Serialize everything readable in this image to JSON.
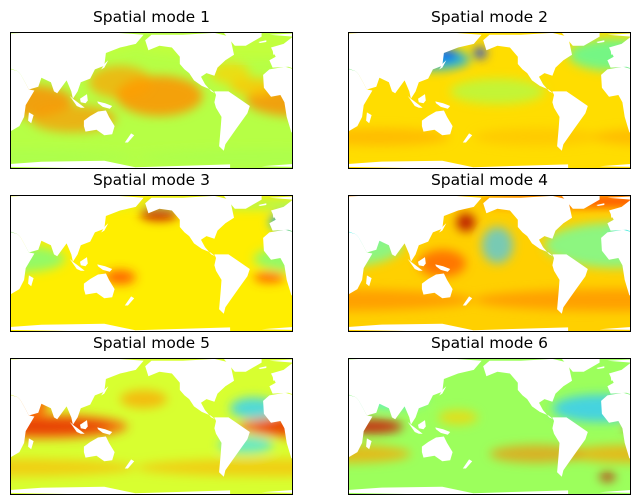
{
  "chart_data": {
    "type": "heatmap",
    "colormap": "jet",
    "panels": [
      {
        "title": "Spatial mode 1",
        "background": "#b6ff45",
        "blobs": [
          {
            "lon": -150,
            "lat": 5,
            "rx": 55,
            "ry": 22,
            "color": "#ff9000",
            "opacity": 0.85
          },
          {
            "lon": 30,
            "lat": 0,
            "rx": 70,
            "ry": 18,
            "color": "#ff8a00",
            "opacity": 0.8
          },
          {
            "lon": 100,
            "lat": -20,
            "rx": 55,
            "ry": 15,
            "color": "#ff9400",
            "opacity": 0.7
          },
          {
            "lon": -30,
            "lat": 15,
            "rx": 30,
            "ry": 10,
            "color": "#ffc400",
            "opacity": 0.8
          },
          {
            "lon": 160,
            "lat": 20,
            "rx": 40,
            "ry": 18,
            "color": "#ffa000",
            "opacity": 0.7
          },
          {
            "lon": 0,
            "lat": 60,
            "rx": 180,
            "ry": 14,
            "color": "#c8ff37",
            "opacity": 0.7
          },
          {
            "lon": 0,
            "lat": -62,
            "rx": 180,
            "ry": 8,
            "color": "#a8ff50",
            "opacity": 0.7
          },
          {
            "lon": -60,
            "lat": 30,
            "rx": 25,
            "ry": 12,
            "color": "#ffd000",
            "opacity": 0.7
          }
        ]
      },
      {
        "title": "Spatial mode 2",
        "background": "#ffdd00",
        "blobs": [
          {
            "lon": 40,
            "lat": 40,
            "rx": 35,
            "ry": 10,
            "color": "#00d4ff",
            "opacity": 0.85
          },
          {
            "lon": 0,
            "lat": 50,
            "rx": 60,
            "ry": 18,
            "color": "#46ffb0",
            "opacity": 0.75
          },
          {
            "lon": 130,
            "lat": 45,
            "rx": 45,
            "ry": 12,
            "color": "#00b0ff",
            "opacity": 0.8
          },
          {
            "lon": 145,
            "lat": 50,
            "rx": 15,
            "ry": 6,
            "color": "#0050ff",
            "opacity": 0.9
          },
          {
            "lon": -172,
            "lat": 52,
            "rx": 8,
            "ry": 6,
            "color": "#0030ff",
            "opacity": 0.9
          },
          {
            "lon": -150,
            "lat": 10,
            "rx": 60,
            "ry": 14,
            "color": "#aaff4d",
            "opacity": 0.7
          },
          {
            "lon": 60,
            "lat": -40,
            "rx": 90,
            "ry": 10,
            "color": "#ffb000",
            "opacity": 0.7
          },
          {
            "lon": -100,
            "lat": -40,
            "rx": 80,
            "ry": 10,
            "color": "#ffc000",
            "opacity": 0.6
          }
        ]
      },
      {
        "title": "Spatial mode 3",
        "background": "#ffee00",
        "blobs": [
          {
            "lon": 20,
            "lat": 45,
            "rx": 30,
            "ry": 12,
            "color": "#00c0ff",
            "opacity": 0.8
          },
          {
            "lon": 5,
            "lat": 48,
            "rx": 10,
            "ry": 5,
            "color": "#0040ff",
            "opacity": 0.9
          },
          {
            "lon": 90,
            "lat": 40,
            "rx": 30,
            "ry": 10,
            "color": "#00f0f0",
            "opacity": 0.8
          },
          {
            "lon": 30,
            "lat": 5,
            "rx": 60,
            "ry": 15,
            "color": "#66ff90",
            "opacity": 0.7
          },
          {
            "lon": -10,
            "lat": -15,
            "rx": 20,
            "ry": 6,
            "color": "#ff5000",
            "opacity": 0.85
          },
          {
            "lon": 160,
            "lat": -15,
            "rx": 20,
            "ry": 8,
            "color": "#ff3000",
            "opacity": 0.7
          },
          {
            "lon": -150,
            "lat": 55,
            "rx": 25,
            "ry": 8,
            "color": "#c00000",
            "opacity": 0.85
          },
          {
            "lon": 0,
            "lat": 65,
            "rx": 180,
            "ry": 6,
            "color": "#80ff80",
            "opacity": 0.6
          }
        ]
      },
      {
        "title": "Spatial mode 4",
        "background": "#ffd000",
        "blobs": [
          {
            "lon": 0,
            "lat": 20,
            "rx": 90,
            "ry": 25,
            "color": "#70ffa0",
            "opacity": 0.8
          },
          {
            "lon": 30,
            "lat": 35,
            "rx": 35,
            "ry": 12,
            "color": "#30e8ff",
            "opacity": 0.8
          },
          {
            "lon": -150,
            "lat": 20,
            "rx": 20,
            "ry": 20,
            "color": "#40c8ff",
            "opacity": 0.7
          },
          {
            "lon": 140,
            "lat": 0,
            "rx": 30,
            "ry": 15,
            "color": "#ff6000",
            "opacity": 0.8
          },
          {
            "lon": 0,
            "lat": 68,
            "rx": 170,
            "ry": 6,
            "color": "#ff3000",
            "opacity": 0.85
          },
          {
            "lon": 0,
            "lat": -40,
            "rx": 180,
            "ry": 12,
            "color": "#ff8c00",
            "opacity": 0.7
          },
          {
            "lon": 170,
            "lat": 45,
            "rx": 12,
            "ry": 10,
            "color": "#b00000",
            "opacity": 0.85
          }
        ]
      },
      {
        "title": "Spatial mode 5",
        "background": "#d8ff30",
        "blobs": [
          {
            "lon": 60,
            "lat": 0,
            "rx": 90,
            "ry": 6,
            "color": "#a00000",
            "opacity": 0.9
          },
          {
            "lon": 60,
            "lat": 0,
            "rx": 110,
            "ry": 14,
            "color": "#ff4000",
            "opacity": 0.7
          },
          {
            "lon": 50,
            "lat": 30,
            "rx": 20,
            "ry": 20,
            "color": "#ff5000",
            "opacity": 0.8
          },
          {
            "lon": 60,
            "lat": 45,
            "rx": 25,
            "ry": 8,
            "color": "#c00000",
            "opacity": 0.8
          },
          {
            "lon": -30,
            "lat": 20,
            "rx": 30,
            "ry": 12,
            "color": "#30d0ff",
            "opacity": 0.8
          },
          {
            "lon": -40,
            "lat": -20,
            "rx": 35,
            "ry": 10,
            "color": "#40e0ff",
            "opacity": 0.7
          },
          {
            "lon": 0,
            "lat": -45,
            "rx": 180,
            "ry": 10,
            "color": "#ffb000",
            "opacity": 0.6
          },
          {
            "lon": -170,
            "lat": 30,
            "rx": 30,
            "ry": 10,
            "color": "#ffa000",
            "opacity": 0.7
          }
        ]
      },
      {
        "title": "Spatial mode 6",
        "background": "#9cff5c",
        "blobs": [
          {
            "lon": 50,
            "lat": 0,
            "rx": 40,
            "ry": 8,
            "color": "#d00000",
            "opacity": 0.8
          },
          {
            "lon": -20,
            "lat": 20,
            "rx": 60,
            "ry": 15,
            "color": "#30c8ff",
            "opacity": 0.8
          },
          {
            "lon": 80,
            "lat": 30,
            "rx": 40,
            "ry": 10,
            "color": "#40e8ff",
            "opacity": 0.7
          },
          {
            "lon": 20,
            "lat": -30,
            "rx": 80,
            "ry": 10,
            "color": "#ffa000",
            "opacity": 0.7
          },
          {
            "lon": -100,
            "lat": -30,
            "rx": 60,
            "ry": 10,
            "color": "#ff8000",
            "opacity": 0.6
          },
          {
            "lon": -10,
            "lat": -55,
            "rx": 10,
            "ry": 5,
            "color": "#c00000",
            "opacity": 0.8
          },
          {
            "lon": 160,
            "lat": 10,
            "rx": 25,
            "ry": 8,
            "color": "#ffd000",
            "opacity": 0.7
          }
        ]
      }
    ]
  },
  "colors": {
    "land": "#ffffff",
    "frame": "#000000"
  }
}
